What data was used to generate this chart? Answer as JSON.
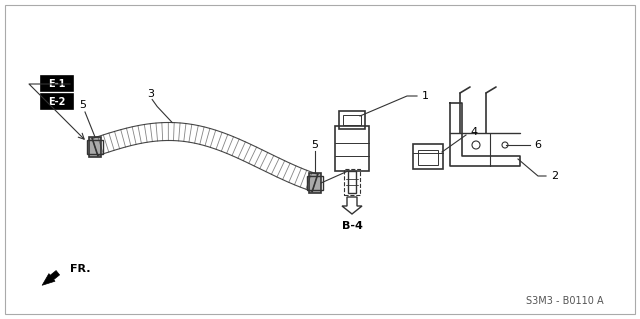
{
  "bg_color": "#ffffff",
  "border_color": "#aaaaaa",
  "line_color": "#333333",
  "text_color": "#000000",
  "diagram_title": "S3M3 - B0110 A",
  "labels": {
    "E1": "E-1",
    "E2": "E-2",
    "part1": "1",
    "part2": "2",
    "part3": "3",
    "part4": "4",
    "part5a": "5",
    "part5b": "5",
    "part6": "6",
    "B4": "B-4",
    "FR": "FR."
  },
  "fig_width": 6.4,
  "fig_height": 3.19,
  "dpi": 100
}
